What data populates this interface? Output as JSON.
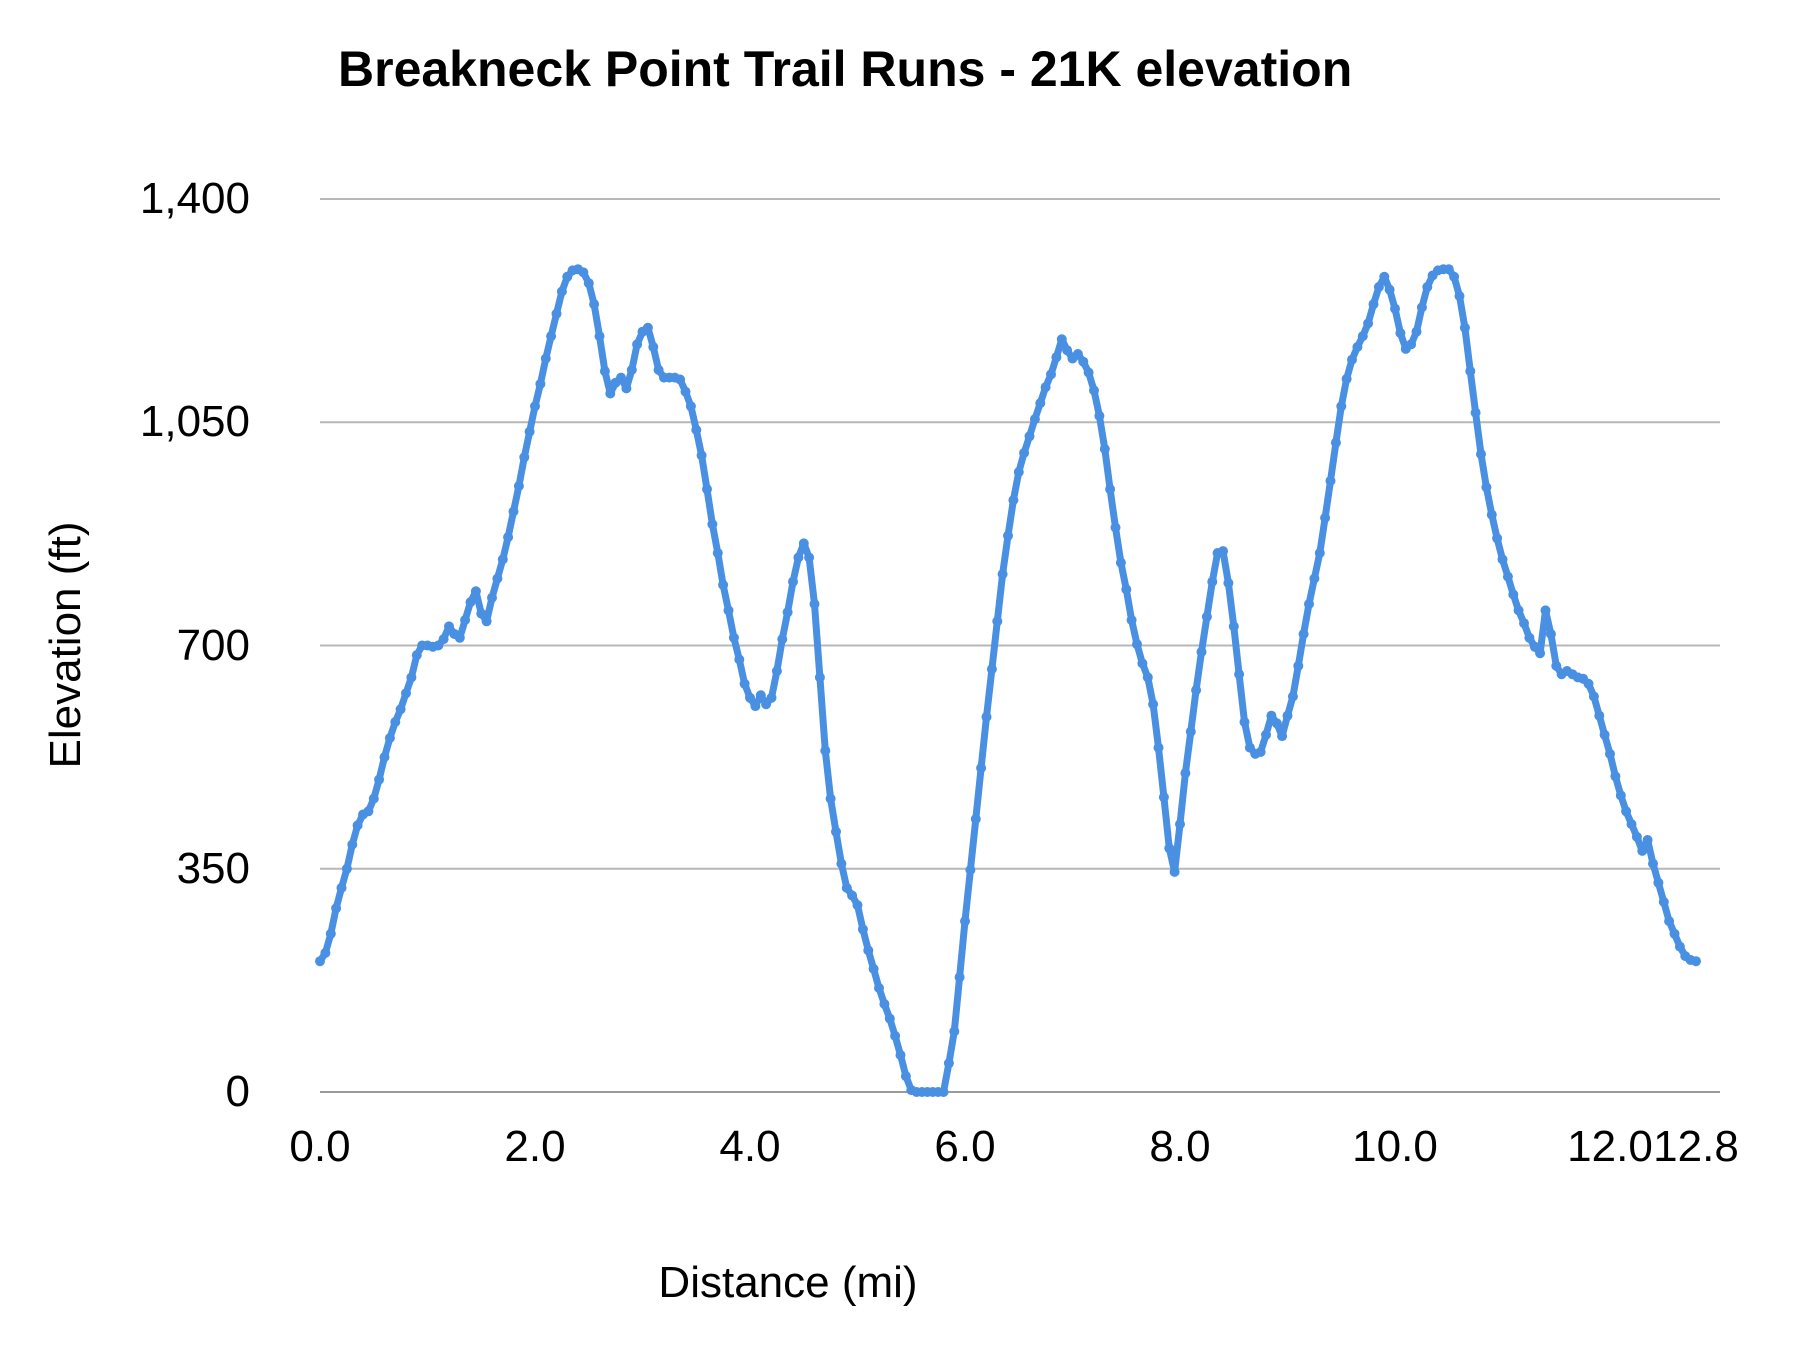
{
  "chart": {
    "title": "Breakneck Point Trail Runs - 21K elevation",
    "x_axis": {
      "label": "Distance (mi)",
      "ticks": [
        {
          "value": 0,
          "label": "0.0"
        },
        {
          "value": 2,
          "label": "2.0"
        },
        {
          "value": 4,
          "label": "4.0"
        },
        {
          "value": 6,
          "label": "6.0"
        },
        {
          "value": 8,
          "label": "8.0"
        },
        {
          "value": 10,
          "label": "10.0"
        },
        {
          "value": 12,
          "label": "12.0"
        },
        {
          "value": 12.8,
          "label": "12.8"
        }
      ]
    },
    "y_axis": {
      "label": "Elevation (ft)",
      "ticks": [
        {
          "value": 0,
          "label": "0"
        },
        {
          "value": 350,
          "label": "350"
        },
        {
          "value": 700,
          "label": "700"
        },
        {
          "value": 1050,
          "label": "1,050"
        },
        {
          "value": 1400,
          "label": "1,400"
        }
      ]
    },
    "colors": {
      "line": "#4a90e2",
      "gridline": "#b7b7b7",
      "zero_line": "#9a9a9a",
      "text": "#000000",
      "background": "#ffffff"
    }
  },
  "chart_data": {
    "type": "line",
    "title": "Breakneck Point Trail Runs - 21K elevation",
    "xlabel": "Distance (mi)",
    "ylabel": "Elevation (ft)",
    "xlim": [
      0,
      13.02
    ],
    "ylim": [
      0,
      1400
    ],
    "x_tick_values": [
      0,
      2,
      4,
      6,
      8,
      10,
      12,
      12.8
    ],
    "y_tick_values": [
      0,
      350,
      700,
      1050,
      1400
    ],
    "grid": "horizontal",
    "legend": "none",
    "series": [
      {
        "name": "elevation",
        "points": [
          [
            0.0,
            205
          ],
          [
            0.05,
            218
          ],
          [
            0.1,
            248
          ],
          [
            0.15,
            288
          ],
          [
            0.2,
            320
          ],
          [
            0.25,
            350
          ],
          [
            0.3,
            388
          ],
          [
            0.35,
            418
          ],
          [
            0.4,
            435
          ],
          [
            0.45,
            440
          ],
          [
            0.5,
            460
          ],
          [
            0.55,
            490
          ],
          [
            0.6,
            525
          ],
          [
            0.65,
            555
          ],
          [
            0.7,
            580
          ],
          [
            0.75,
            600
          ],
          [
            0.8,
            625
          ],
          [
            0.85,
            650
          ],
          [
            0.9,
            685
          ],
          [
            0.95,
            700
          ],
          [
            1.0,
            700
          ],
          [
            1.05,
            698
          ],
          [
            1.1,
            700
          ],
          [
            1.15,
            710
          ],
          [
            1.2,
            730
          ],
          [
            1.25,
            718
          ],
          [
            1.3,
            712
          ],
          [
            1.35,
            740
          ],
          [
            1.4,
            768
          ],
          [
            1.45,
            785
          ],
          [
            1.5,
            750
          ],
          [
            1.55,
            738
          ],
          [
            1.6,
            775
          ],
          [
            1.65,
            805
          ],
          [
            1.7,
            835
          ],
          [
            1.75,
            870
          ],
          [
            1.8,
            910
          ],
          [
            1.85,
            950
          ],
          [
            1.9,
            995
          ],
          [
            1.95,
            1035
          ],
          [
            2.0,
            1075
          ],
          [
            2.05,
            1110
          ],
          [
            2.1,
            1150
          ],
          [
            2.15,
            1185
          ],
          [
            2.2,
            1220
          ],
          [
            2.25,
            1255
          ],
          [
            2.3,
            1278
          ],
          [
            2.35,
            1288
          ],
          [
            2.4,
            1290
          ],
          [
            2.45,
            1285
          ],
          [
            2.5,
            1268
          ],
          [
            2.55,
            1235
          ],
          [
            2.6,
            1185
          ],
          [
            2.65,
            1130
          ],
          [
            2.7,
            1095
          ],
          [
            2.75,
            1112
          ],
          [
            2.8,
            1120
          ],
          [
            2.85,
            1103
          ],
          [
            2.9,
            1132
          ],
          [
            2.95,
            1172
          ],
          [
            3.0,
            1192
          ],
          [
            3.05,
            1198
          ],
          [
            3.1,
            1168
          ],
          [
            3.15,
            1132
          ],
          [
            3.2,
            1120
          ],
          [
            3.25,
            1120
          ],
          [
            3.3,
            1120
          ],
          [
            3.35,
            1117
          ],
          [
            3.4,
            1098
          ],
          [
            3.45,
            1075
          ],
          [
            3.5,
            1038
          ],
          [
            3.55,
            998
          ],
          [
            3.6,
            945
          ],
          [
            3.65,
            890
          ],
          [
            3.7,
            845
          ],
          [
            3.75,
            795
          ],
          [
            3.8,
            755
          ],
          [
            3.85,
            712
          ],
          [
            3.9,
            678
          ],
          [
            3.95,
            640
          ],
          [
            4.0,
            618
          ],
          [
            4.05,
            605
          ],
          [
            4.1,
            622
          ],
          [
            4.15,
            608
          ],
          [
            4.2,
            618
          ],
          [
            4.25,
            660
          ],
          [
            4.3,
            710
          ],
          [
            4.35,
            752
          ],
          [
            4.4,
            800
          ],
          [
            4.45,
            838
          ],
          [
            4.5,
            860
          ],
          [
            4.55,
            838
          ],
          [
            4.6,
            765
          ],
          [
            4.65,
            650
          ],
          [
            4.7,
            535
          ],
          [
            4.75,
            460
          ],
          [
            4.8,
            408
          ],
          [
            4.85,
            358
          ],
          [
            4.9,
            320
          ],
          [
            4.95,
            308
          ],
          [
            5.0,
            293
          ],
          [
            5.05,
            255
          ],
          [
            5.1,
            222
          ],
          [
            5.15,
            193
          ],
          [
            5.2,
            163
          ],
          [
            5.25,
            138
          ],
          [
            5.3,
            115
          ],
          [
            5.35,
            88
          ],
          [
            5.4,
            58
          ],
          [
            5.45,
            25
          ],
          [
            5.5,
            3
          ],
          [
            5.55,
            0
          ],
          [
            5.6,
            0
          ],
          [
            5.65,
            0
          ],
          [
            5.7,
            0
          ],
          [
            5.75,
            0
          ],
          [
            5.8,
            0
          ],
          [
            5.85,
            45
          ],
          [
            5.9,
            95
          ],
          [
            5.95,
            180
          ],
          [
            6.0,
            268
          ],
          [
            6.05,
            348
          ],
          [
            6.1,
            428
          ],
          [
            6.15,
            508
          ],
          [
            6.2,
            588
          ],
          [
            6.25,
            663
          ],
          [
            6.3,
            738
          ],
          [
            6.35,
            812
          ],
          [
            6.4,
            872
          ],
          [
            6.45,
            928
          ],
          [
            6.5,
            972
          ],
          [
            6.55,
            1002
          ],
          [
            6.6,
            1028
          ],
          [
            6.65,
            1055
          ],
          [
            6.7,
            1080
          ],
          [
            6.75,
            1105
          ],
          [
            6.8,
            1125
          ],
          [
            6.85,
            1152
          ],
          [
            6.9,
            1180
          ],
          [
            6.95,
            1163
          ],
          [
            7.0,
            1150
          ],
          [
            7.05,
            1157
          ],
          [
            7.1,
            1145
          ],
          [
            7.15,
            1128
          ],
          [
            7.2,
            1100
          ],
          [
            7.25,
            1060
          ],
          [
            7.3,
            1008
          ],
          [
            7.35,
            945
          ],
          [
            7.4,
            885
          ],
          [
            7.45,
            830
          ],
          [
            7.5,
            788
          ],
          [
            7.55,
            740
          ],
          [
            7.6,
            702
          ],
          [
            7.65,
            672
          ],
          [
            7.7,
            650
          ],
          [
            7.75,
            608
          ],
          [
            7.8,
            540
          ],
          [
            7.85,
            462
          ],
          [
            7.9,
            382
          ],
          [
            7.95,
            345
          ],
          [
            8.0,
            420
          ],
          [
            8.05,
            500
          ],
          [
            8.1,
            565
          ],
          [
            8.15,
            630
          ],
          [
            8.2,
            690
          ],
          [
            8.25,
            745
          ],
          [
            8.3,
            800
          ],
          [
            8.35,
            845
          ],
          [
            8.4,
            848
          ],
          [
            8.45,
            798
          ],
          [
            8.5,
            730
          ],
          [
            8.55,
            655
          ],
          [
            8.6,
            580
          ],
          [
            8.65,
            540
          ],
          [
            8.7,
            530
          ],
          [
            8.75,
            533
          ],
          [
            8.8,
            560
          ],
          [
            8.85,
            590
          ],
          [
            8.9,
            578
          ],
          [
            8.95,
            558
          ],
          [
            9.0,
            590
          ],
          [
            9.05,
            620
          ],
          [
            9.1,
            668
          ],
          [
            9.15,
            718
          ],
          [
            9.2,
            765
          ],
          [
            9.25,
            805
          ],
          [
            9.3,
            845
          ],
          [
            9.35,
            900
          ],
          [
            9.4,
            958
          ],
          [
            9.45,
            1018
          ],
          [
            9.5,
            1075
          ],
          [
            9.55,
            1118
          ],
          [
            9.6,
            1148
          ],
          [
            9.65,
            1168
          ],
          [
            9.7,
            1185
          ],
          [
            9.75,
            1205
          ],
          [
            9.8,
            1235
          ],
          [
            9.85,
            1262
          ],
          [
            9.9,
            1278
          ],
          [
            9.95,
            1258
          ],
          [
            10.0,
            1228
          ],
          [
            10.05,
            1190
          ],
          [
            10.1,
            1165
          ],
          [
            10.15,
            1172
          ],
          [
            10.2,
            1192
          ],
          [
            10.25,
            1230
          ],
          [
            10.3,
            1262
          ],
          [
            10.35,
            1280
          ],
          [
            10.4,
            1288
          ],
          [
            10.45,
            1290
          ],
          [
            10.5,
            1290
          ],
          [
            10.55,
            1278
          ],
          [
            10.6,
            1248
          ],
          [
            10.65,
            1198
          ],
          [
            10.7,
            1130
          ],
          [
            10.75,
            1065
          ],
          [
            10.8,
            1000
          ],
          [
            10.85,
            948
          ],
          [
            10.9,
            905
          ],
          [
            10.95,
            868
          ],
          [
            11.0,
            835
          ],
          [
            11.05,
            808
          ],
          [
            11.1,
            780
          ],
          [
            11.15,
            755
          ],
          [
            11.2,
            735
          ],
          [
            11.25,
            712
          ],
          [
            11.3,
            698
          ],
          [
            11.35,
            688
          ],
          [
            11.4,
            755
          ],
          [
            11.45,
            718
          ],
          [
            11.5,
            668
          ],
          [
            11.55,
            655
          ],
          [
            11.6,
            660
          ],
          [
            11.65,
            655
          ],
          [
            11.7,
            650
          ],
          [
            11.75,
            648
          ],
          [
            11.8,
            640
          ],
          [
            11.85,
            620
          ],
          [
            11.9,
            590
          ],
          [
            11.95,
            560
          ],
          [
            12.0,
            530
          ],
          [
            12.05,
            495
          ],
          [
            12.1,
            465
          ],
          [
            12.15,
            440
          ],
          [
            12.2,
            420
          ],
          [
            12.25,
            400
          ],
          [
            12.3,
            378
          ],
          [
            12.35,
            395
          ],
          [
            12.4,
            358
          ],
          [
            12.45,
            328
          ],
          [
            12.5,
            298
          ],
          [
            12.55,
            268
          ],
          [
            12.6,
            248
          ],
          [
            12.65,
            228
          ],
          [
            12.7,
            213
          ],
          [
            12.75,
            207
          ],
          [
            12.8,
            205
          ]
        ]
      }
    ]
  }
}
